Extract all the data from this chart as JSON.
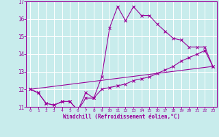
{
  "xlabel": "Windchill (Refroidissement éolien,°C)",
  "xlim": [
    -0.5,
    23.5
  ],
  "ylim": [
    11,
    17
  ],
  "yticks": [
    11,
    12,
    13,
    14,
    15,
    16,
    17
  ],
  "xticks": [
    0,
    1,
    2,
    3,
    4,
    5,
    6,
    7,
    8,
    9,
    10,
    11,
    12,
    13,
    14,
    15,
    16,
    17,
    18,
    19,
    20,
    21,
    22,
    23
  ],
  "bg_color": "#c8ecec",
  "line_color": "#990099",
  "axis_bg_color": "#7b0080",
  "grid_color": "#ffffff",
  "line1_y": [
    12.0,
    11.8,
    11.2,
    11.1,
    11.3,
    11.3,
    10.8,
    11.8,
    11.5,
    12.7,
    15.5,
    16.7,
    15.9,
    16.7,
    16.2,
    16.2,
    15.7,
    15.3,
    14.9,
    14.8,
    14.4,
    14.4,
    14.4,
    13.3
  ],
  "line2_y": [
    12.0,
    11.8,
    11.2,
    11.1,
    11.3,
    11.3,
    10.8,
    11.5,
    11.5,
    12.0,
    12.1,
    12.2,
    12.3,
    12.5,
    12.6,
    12.7,
    12.9,
    13.1,
    13.3,
    13.6,
    13.8,
    14.0,
    14.2,
    13.3
  ],
  "line3_x": [
    0,
    23
  ],
  "line3_y": [
    12.0,
    13.3
  ]
}
